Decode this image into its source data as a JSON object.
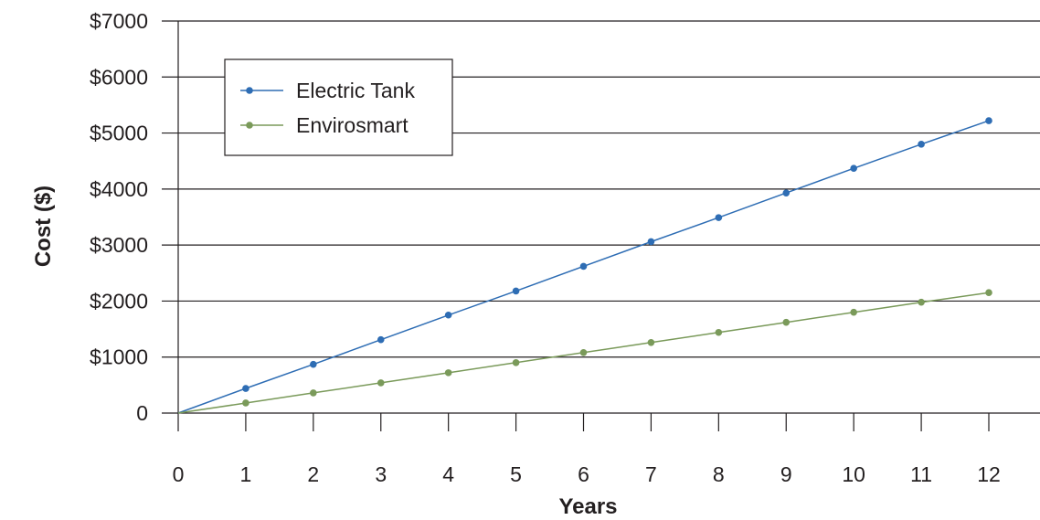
{
  "chart_data": {
    "type": "line",
    "title": "",
    "xlabel": "Years",
    "ylabel": "Cost ($)",
    "x": [
      0,
      1,
      2,
      3,
      4,
      5,
      6,
      7,
      8,
      9,
      10,
      11,
      12
    ],
    "x_tick_labels": [
      "0",
      "1",
      "2",
      "3",
      "4",
      "5",
      "6",
      "7",
      "8",
      "9",
      "10",
      "11",
      "12"
    ],
    "y_ticks": [
      0,
      1000,
      2000,
      3000,
      4000,
      5000,
      6000,
      7000
    ],
    "y_tick_labels": [
      "0",
      "$1000",
      "$2000",
      "$3000",
      "$4000",
      "$5000",
      "$6000",
      "$7000"
    ],
    "xlim": [
      0,
      12
    ],
    "ylim": [
      0,
      7000
    ],
    "grid": "horizontal",
    "legend_position": "top-left",
    "series": [
      {
        "name": "Electric Tank",
        "color": "#2e6db4",
        "values": [
          0,
          440,
          870,
          1310,
          1750,
          2180,
          2620,
          3060,
          3490,
          3930,
          4370,
          4800,
          5220
        ]
      },
      {
        "name": "Envirosmart",
        "color": "#7a9a5a",
        "values": [
          0,
          180,
          360,
          540,
          720,
          900,
          1080,
          1260,
          1440,
          1620,
          1800,
          1980,
          2150
        ]
      }
    ]
  }
}
